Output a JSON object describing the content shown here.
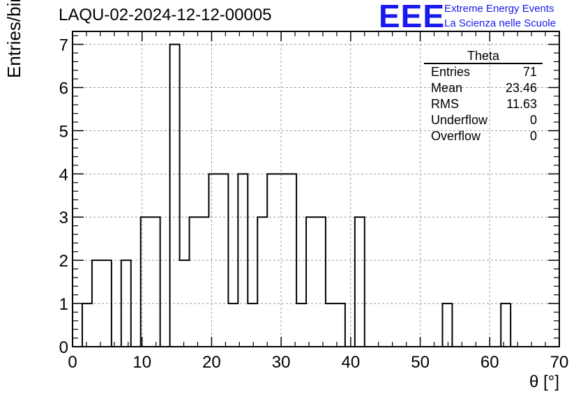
{
  "header": {
    "title": "LAQU-02-2024-12-12-00005",
    "logo_text": "EEE",
    "logo_line1": "Extreme Energy Events",
    "logo_line2": "La Scienza nelle Scuole",
    "logo_color": "#1a1aee"
  },
  "stats_box": {
    "title": "Theta",
    "rows": [
      {
        "label": "Entries",
        "value": "71"
      },
      {
        "label": "Mean",
        "value": "23.46"
      },
      {
        "label": "RMS",
        "value": "11.63"
      },
      {
        "label": "Underflow",
        "value": "0"
      },
      {
        "label": "Overflow",
        "value": "0"
      }
    ]
  },
  "chart_data": {
    "type": "histogram",
    "xlabel": "θ [°]",
    "ylabel": "Entries/bin",
    "xlim": [
      0,
      70
    ],
    "ylim": [
      0,
      7.3
    ],
    "xticks": [
      0,
      10,
      20,
      30,
      40,
      50,
      60,
      70
    ],
    "yticks": [
      0,
      1,
      2,
      3,
      4,
      5,
      6,
      7
    ],
    "grid": true,
    "line_color": "#000000",
    "bin_edges": [
      0,
      1.4,
      2.8,
      4.2,
      5.6,
      7.0,
      8.4,
      9.8,
      11.2,
      12.6,
      14.0,
      15.4,
      16.8,
      18.2,
      19.6,
      21.0,
      22.4,
      23.8,
      25.2,
      26.6,
      28.0,
      29.4,
      30.8,
      32.2,
      33.6,
      35.0,
      36.4,
      37.8,
      39.2,
      40.6,
      42.0,
      43.4,
      44.8,
      46.2,
      47.6,
      49.0,
      50.4,
      51.8,
      53.2,
      54.6,
      56.0,
      57.4,
      58.8,
      60.2,
      61.6,
      63.0,
      64.4,
      65.8,
      67.2,
      68.6,
      70.0
    ],
    "counts": [
      0,
      1,
      2,
      2,
      0,
      2,
      0,
      3,
      3,
      0,
      7,
      2,
      3,
      3,
      4,
      4,
      1,
      4,
      1,
      3,
      4,
      4,
      4,
      1,
      3,
      3,
      1,
      1,
      0,
      3,
      0,
      0,
      0,
      0,
      0,
      0,
      0,
      0,
      1,
      0,
      0,
      0,
      0,
      0,
      1,
      0,
      0,
      0,
      0,
      0
    ]
  }
}
